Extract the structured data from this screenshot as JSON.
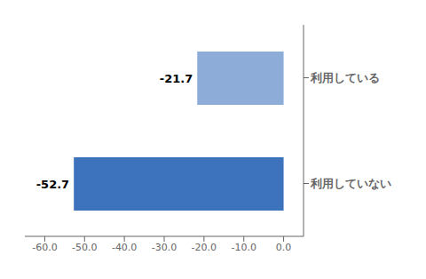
{
  "chart_data": {
    "type": "bar",
    "orientation": "horizontal",
    "categories": [
      "利用していない",
      "利用している"
    ],
    "values": [
      -52.7,
      -21.7
    ],
    "colors": [
      "#3d72bc",
      "#8dacd8"
    ],
    "xlim": [
      -65,
      5
    ],
    "xticks": [
      {
        "value": -60,
        "label": "-60.0"
      },
      {
        "value": -50,
        "label": "-50.0"
      },
      {
        "value": -40,
        "label": "-40.0"
      },
      {
        "value": -30,
        "label": "-30.0"
      },
      {
        "value": -20,
        "label": "-20.0"
      },
      {
        "value": -10,
        "label": "-10.0"
      },
      {
        "value": 0,
        "label": "0.0"
      }
    ],
    "data_labels": true,
    "grid": false
  }
}
